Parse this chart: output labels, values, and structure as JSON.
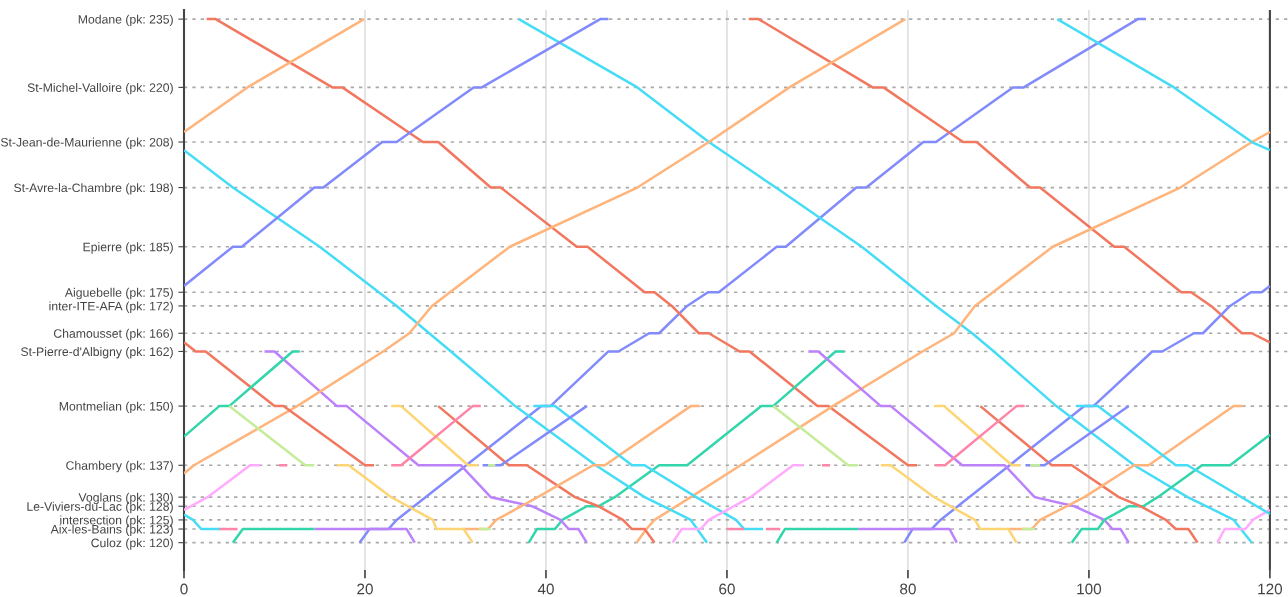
{
  "chart_data": {
    "type": "line",
    "xlim": [
      0,
      122
    ],
    "xticks": [
      0,
      20,
      40,
      60,
      80,
      100,
      120
    ],
    "ylim": [
      114,
      237
    ],
    "yticks": [
      {
        "value": 235,
        "label": "Modane (pk: 235)"
      },
      {
        "value": 220,
        "label": "St-Michel-Valloire (pk: 220)"
      },
      {
        "value": 208,
        "label": "St-Jean-de-Maurienne (pk: 208)"
      },
      {
        "value": 198,
        "label": "St-Avre-la-Chambre (pk: 198)"
      },
      {
        "value": 185,
        "label": "Epierre (pk: 185)"
      },
      {
        "value": 175,
        "label": "Aiguebelle (pk: 175)"
      },
      {
        "value": 172,
        "label": "inter-ITE-AFA (pk: 172)"
      },
      {
        "value": 166,
        "label": "Chamousset (pk: 166)"
      },
      {
        "value": 162,
        "label": "St-Pierre-d'Albigny (pk: 162)"
      },
      {
        "value": 150,
        "label": "Montmelian (pk: 150)"
      },
      {
        "value": 137,
        "label": "Chambery (pk: 137)"
      },
      {
        "value": 130,
        "label": "Voglans (pk: 130)"
      },
      {
        "value": 128,
        "label": "Le-Viviers-du-Lac (pk: 128)"
      },
      {
        "value": 125,
        "label": "intersection (pk: 125)"
      },
      {
        "value": 123,
        "label": "Aix-les-Bains (pk: 123)"
      },
      {
        "value": 120,
        "label": "Culoz (pk: 120)"
      }
    ],
    "grid": true,
    "ref_lines": [
      {
        "axis": "x",
        "value": 120,
        "label": null,
        "color": "#444444"
      }
    ],
    "series": [
      {
        "color": "#f2775f",
        "x": [
          0,
          1.3,
          2.4,
          10,
          11,
          20,
          21
        ],
        "values": [
          164,
          162,
          162,
          150,
          150,
          137,
          137
        ]
      },
      {
        "color": "#f2775f",
        "x": [
          2.5,
          3.5,
          16.4,
          17.5,
          26.4,
          28.1,
          33.9,
          35,
          43.4,
          44.6,
          50.9,
          52,
          53.9,
          56.9,
          58,
          61.4,
          62.5,
          70,
          71.2,
          80,
          81
        ],
        "values": [
          235,
          235,
          220,
          220,
          208,
          208,
          198,
          198,
          185,
          185,
          175,
          175,
          172,
          166,
          166,
          162,
          162,
          150,
          150,
          137,
          137
        ]
      },
      {
        "color": "#f2775f",
        "x": [
          62.4,
          63.5,
          76.1,
          77.3,
          86.1,
          87.6,
          93.5,
          94.6,
          102.8,
          103.9,
          110.2,
          111.3,
          113.5,
          116.9,
          118,
          120
        ],
        "values": [
          235,
          235,
          220,
          220,
          208,
          208,
          198,
          198,
          185,
          185,
          175,
          175,
          172,
          166,
          166,
          164
        ]
      },
      {
        "color": "#f2775f",
        "x": [
          28.1,
          35.9,
          37.9,
          43.2,
          45.8,
          48.5,
          49.5,
          50.9,
          52
        ],
        "values": [
          150,
          137,
          137,
          130,
          128,
          125,
          123,
          123,
          120
        ]
      },
      {
        "color": "#f2775f",
        "x": [
          88,
          95.9,
          98.1,
          103.3,
          105.7,
          108.5,
          109.6,
          111,
          112
        ],
        "values": [
          150,
          137,
          137,
          130,
          128,
          125,
          123,
          123,
          120
        ]
      },
      {
        "color": "#ffb47b",
        "x": [
          0,
          1.1,
          12.5,
          22,
          24.9,
          27.4,
          36,
          50.1,
          58,
          66.9,
          79.7
        ],
        "values": [
          135.2,
          137,
          150,
          162,
          166,
          172,
          185,
          198,
          208,
          220,
          235
        ]
      },
      {
        "color": "#ffb47b",
        "x": [
          50,
          51.1,
          52,
          56,
          61.5,
          71.7,
          81.6,
          85.1,
          87.4,
          96,
          110.1,
          118,
          120
        ],
        "values": [
          120,
          123,
          125,
          130,
          137,
          150,
          162,
          166,
          172,
          185,
          198,
          208,
          210.2
        ]
      },
      {
        "color": "#ffb47b",
        "x": [
          0,
          7,
          19.9
        ],
        "values": [
          210.2,
          220,
          235
        ]
      },
      {
        "color": "#ffb47b",
        "x": [
          31,
          33.6,
          34.5,
          39.1,
          45.2,
          46.5,
          56,
          57
        ],
        "values": [
          123,
          123,
          125,
          130,
          137,
          137,
          150,
          150
        ]
      },
      {
        "color": "#ffb47b",
        "x": [
          91.1,
          93.7,
          94.6,
          99.5,
          105,
          106.6,
          116,
          117
        ],
        "values": [
          123,
          123,
          125,
          130,
          137,
          137,
          150,
          150
        ]
      },
      {
        "color": "#fed575",
        "x": [
          16.9,
          18.2,
          22.9,
          27.5,
          27.9,
          30.9,
          31.9
        ],
        "values": [
          137,
          137,
          130,
          125,
          123,
          123,
          120
        ]
      },
      {
        "color": "#fed575",
        "x": [
          77,
          78.1,
          82.9,
          87.4,
          88,
          91.1,
          92
        ],
        "values": [
          137,
          137,
          130,
          125,
          123,
          123,
          120
        ]
      },
      {
        "color": "#fed575",
        "x": [
          22.9,
          24,
          31.4,
          32.5
        ],
        "values": [
          150,
          150,
          137,
          137
        ]
      },
      {
        "color": "#fed575",
        "x": [
          82.9,
          84,
          91.5,
          92.4
        ],
        "values": [
          150,
          150,
          137,
          137
        ]
      },
      {
        "color": "#ff85a8",
        "x": [
          22.9,
          24,
          31.9,
          32.8
        ],
        "values": [
          137,
          137,
          150,
          150
        ]
      },
      {
        "color": "#ff85a8",
        "x": [
          83,
          84.1,
          92,
          92.9
        ],
        "values": [
          137,
          137,
          150,
          150
        ]
      },
      {
        "color": "#ff85a8",
        "x": [
          10.5,
          11.4
        ],
        "values": [
          137,
          137
        ]
      },
      {
        "color": "#ff85a8",
        "x": [
          70.5,
          71.4
        ],
        "values": [
          137,
          137
        ]
      },
      {
        "color": "#ff85a8",
        "x": [
          3.9,
          5.9
        ],
        "values": [
          123,
          123
        ]
      },
      {
        "color": "#ff85a8",
        "x": [
          60,
          61.9
        ],
        "values": [
          123,
          123
        ]
      },
      {
        "color": "#ff85a8",
        "x": [
          64.3,
          65.9
        ],
        "values": [
          123,
          123
        ]
      },
      {
        "color": "#ffacff",
        "x": [
          0,
          2.6,
          7.3,
          8.4
        ],
        "values": [
          127.2,
          130,
          137,
          137
        ]
      },
      {
        "color": "#ffacff",
        "x": [
          54,
          55,
          57.1,
          58,
          62.6,
          67.3,
          68.4
        ],
        "values": [
          120,
          123,
          123,
          125,
          130,
          137,
          137
        ]
      },
      {
        "color": "#ffacff",
        "x": [
          114.2,
          115,
          117.3,
          118.1,
          120
        ],
        "values": [
          120,
          123,
          123,
          125,
          127.2
        ]
      },
      {
        "color": "#bc82fb",
        "x": [
          8.9,
          10,
          16.9,
          18,
          25.9,
          30.6,
          33.9,
          38.5,
          41.6,
          42.5,
          43.6,
          44.5
        ],
        "values": [
          162,
          162,
          150,
          150,
          137,
          137,
          130,
          128,
          125,
          123,
          123,
          120
        ]
      },
      {
        "color": "#bc82fb",
        "x": [
          69,
          70.1,
          77,
          78.1,
          86,
          90.7,
          94,
          98.4,
          101.7,
          102.6,
          103.5,
          104.4
        ],
        "values": [
          162,
          162,
          150,
          150,
          137,
          137,
          130,
          128,
          125,
          123,
          123,
          120
        ]
      },
      {
        "color": "#bc82fb",
        "x": [
          14.4,
          24.6,
          25.5
        ],
        "values": [
          123,
          123,
          120
        ]
      },
      {
        "color": "#bc82fb",
        "x": [
          74.5,
          84.6,
          85.4
        ],
        "values": [
          123,
          123,
          120
        ]
      },
      {
        "color": "#33d6ab",
        "x": [
          5.4,
          6.5,
          14.4
        ],
        "values": [
          120,
          123,
          123
        ]
      },
      {
        "color": "#33d6ab",
        "x": [
          65.5,
          66.4,
          74.5
        ],
        "values": [
          120,
          123,
          123
        ]
      },
      {
        "color": "#33d6ab",
        "x": [
          0,
          3.9,
          5,
          12,
          12.8
        ],
        "values": [
          143.3,
          150,
          150,
          162,
          162
        ]
      },
      {
        "color": "#33d6ab",
        "x": [
          38.1,
          39,
          41,
          41.8,
          44.5,
          45.8,
          47.6,
          52.5,
          55.6,
          63.8,
          65.1,
          72,
          73
        ],
        "values": [
          120,
          123,
          123,
          125,
          128,
          128,
          130,
          137,
          137,
          150,
          150,
          162,
          162
        ]
      },
      {
        "color": "#33d6ab",
        "x": [
          98.1,
          99.2,
          101,
          101.7,
          104.4,
          106,
          107.6,
          112.5,
          115.6,
          120
        ],
        "values": [
          120,
          123,
          123,
          125,
          128,
          128,
          130,
          137,
          137,
          143.7
        ]
      },
      {
        "color": "#c5ed99",
        "x": [
          5,
          13.4,
          14.4
        ],
        "values": [
          150,
          137,
          137
        ]
      },
      {
        "color": "#c5ed99",
        "x": [
          65.1,
          73.4,
          74.5
        ],
        "values": [
          150,
          137,
          137
        ]
      },
      {
        "color": "#c5ed99",
        "x": [
          33.6,
          34.4
        ],
        "values": [
          137,
          137
        ]
      },
      {
        "color": "#c5ed99",
        "x": [
          93.5,
          94.6
        ],
        "values": [
          137,
          137
        ]
      },
      {
        "color": "#c5ed99",
        "x": [
          32.6,
          33.9
        ],
        "values": [
          123,
          123
        ]
      },
      {
        "color": "#c5ed99",
        "x": [
          92.6,
          94
        ],
        "values": [
          123,
          123
        ]
      },
      {
        "color": "#828bfb",
        "x": [
          0,
          5.4,
          6.4,
          14.4,
          15.4,
          21.9,
          23.5,
          32,
          32.9,
          46,
          46.9
        ],
        "values": [
          176.4,
          185,
          185,
          198,
          198,
          208,
          208,
          220,
          220,
          235,
          235
        ]
      },
      {
        "color": "#828bfb",
        "x": [
          19.4,
          20.5,
          22.6,
          23.5,
          39.5,
          40.5,
          46.9,
          48,
          51.4,
          52.5,
          55.6,
          57.9,
          59.1,
          65.5,
          66.5,
          74.3,
          75.4,
          81.7,
          83.1,
          91.6,
          92.8,
          105.4,
          106.3
        ],
        "values": [
          120,
          123,
          123,
          125,
          150,
          150,
          162,
          162,
          166,
          166,
          172,
          175,
          175,
          185,
          185,
          198,
          198,
          208,
          208,
          220,
          220,
          235,
          235
        ]
      },
      {
        "color": "#828bfb",
        "x": [
          79.6,
          80.5,
          82.6,
          83.6,
          99.5,
          100.5,
          107,
          108.1,
          111.6,
          112.6,
          115.6,
          117.9,
          119.1,
          120
        ],
        "values": [
          120,
          123,
          123,
          125,
          150,
          150,
          162,
          162,
          166,
          166,
          172,
          175,
          175,
          176.4
        ]
      },
      {
        "color": "#828bfb",
        "x": [
          33,
          35,
          44.5
        ],
        "values": [
          137,
          137,
          150
        ]
      },
      {
        "color": "#828bfb",
        "x": [
          93,
          95.1,
          104.4
        ],
        "values": [
          137,
          137,
          150
        ]
      },
      {
        "color": "#47dcf5",
        "x": [
          0,
          5.4,
          15,
          23.5,
          27.1,
          29.5,
          36.6,
          45.5,
          50.9,
          53,
          56,
          57.8
        ],
        "values": [
          206.2,
          198,
          185,
          172,
          166,
          162,
          150,
          137,
          130,
          128,
          125,
          120
        ]
      },
      {
        "color": "#47dcf5",
        "x": [
          37,
          50.1,
          58,
          65.4,
          74.9,
          83.1,
          87.1,
          89.5,
          96.4,
          105,
          110.9,
          113,
          116,
          118
        ],
        "values": [
          235,
          220,
          208,
          198,
          185,
          172,
          166,
          162,
          150,
          137,
          130,
          128,
          125,
          120
        ]
      },
      {
        "color": "#47dcf5",
        "x": [
          96.5,
          109.4,
          118,
          120
        ],
        "values": [
          235,
          220,
          208,
          206.2
        ]
      },
      {
        "color": "#47dcf5",
        "x": [
          0,
          1,
          1.9,
          4
        ],
        "values": [
          126.2,
          125,
          123,
          123
        ]
      },
      {
        "color": "#47dcf5",
        "x": [
          38.6,
          41,
          49.5,
          50.9,
          56.6,
          61,
          61.9,
          64
        ],
        "values": [
          150,
          150,
          137,
          137,
          130,
          125,
          123,
          123
        ]
      },
      {
        "color": "#47dcf5",
        "x": [
          98.6,
          101,
          109.6,
          110.9,
          120
        ],
        "values": [
          150,
          150,
          137,
          137,
          126.3
        ]
      }
    ]
  }
}
